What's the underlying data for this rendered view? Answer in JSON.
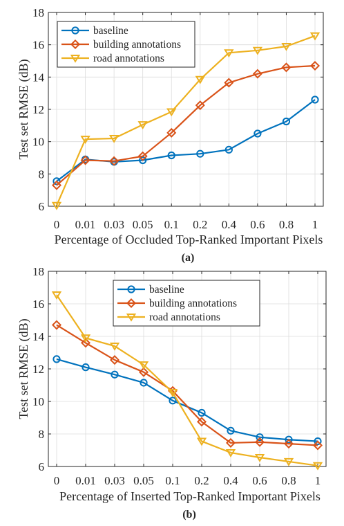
{
  "colors": {
    "baseline": "#0072BD",
    "building": "#D95319",
    "road": "#EDB120",
    "axis": "#262626"
  },
  "chart_data": [
    {
      "type": "line",
      "caption": "(a)",
      "xlabel": "Percentage of Occluded Top-Ranked Important Pixels",
      "ylabel": "Test set RMSE (dB)",
      "categories": [
        "0",
        "0.01",
        "0.03",
        "0.05",
        "0.1",
        "0.2",
        "0.4",
        "0.6",
        "0.8",
        "1"
      ],
      "ylim": [
        6,
        18
      ],
      "yticks": [
        6,
        8,
        10,
        12,
        14,
        16,
        18
      ],
      "grid": true,
      "legend_position": "top-left",
      "series": [
        {
          "name": "baseline",
          "marker": "circle",
          "color": "#0072BD",
          "values": [
            7.55,
            8.9,
            8.75,
            8.85,
            9.15,
            9.25,
            9.5,
            10.5,
            11.25,
            12.6
          ]
        },
        {
          "name": "building annotations",
          "marker": "diamond",
          "color": "#D95319",
          "values": [
            7.3,
            8.85,
            8.8,
            9.1,
            10.55,
            12.25,
            13.65,
            14.2,
            14.6,
            14.7
          ]
        },
        {
          "name": "road annotations",
          "marker": "triangle-down",
          "color": "#EDB120",
          "values": [
            6.05,
            10.15,
            10.2,
            11.05,
            11.85,
            13.85,
            15.5,
            15.65,
            15.9,
            16.55
          ]
        }
      ]
    },
    {
      "type": "line",
      "caption": "(b)",
      "xlabel": "Percentage of Inserted Top-Ranked Important Pixels",
      "ylabel": "Test set RMSE (dB)",
      "categories": [
        "0",
        "0.01",
        "0.03",
        "0.05",
        "0.1",
        "0.2",
        "0.4",
        "0.6",
        "0.8",
        "1"
      ],
      "ylim": [
        6,
        18
      ],
      "yticks": [
        6,
        8,
        10,
        12,
        14,
        16,
        18
      ],
      "grid": true,
      "legend_position": "top-right",
      "series": [
        {
          "name": "baseline",
          "marker": "circle",
          "color": "#0072BD",
          "values": [
            12.6,
            12.1,
            11.65,
            11.15,
            10.05,
            9.3,
            8.2,
            7.8,
            7.65,
            7.55
          ]
        },
        {
          "name": "building annotations",
          "marker": "diamond",
          "color": "#D95319",
          "values": [
            14.7,
            13.6,
            12.55,
            11.8,
            10.65,
            8.75,
            7.45,
            7.5,
            7.4,
            7.3
          ]
        },
        {
          "name": "road annotations",
          "marker": "triangle-down",
          "color": "#EDB120",
          "values": [
            16.55,
            13.9,
            13.4,
            12.25,
            10.55,
            7.55,
            6.85,
            6.55,
            6.3,
            6.05
          ]
        }
      ]
    }
  ]
}
